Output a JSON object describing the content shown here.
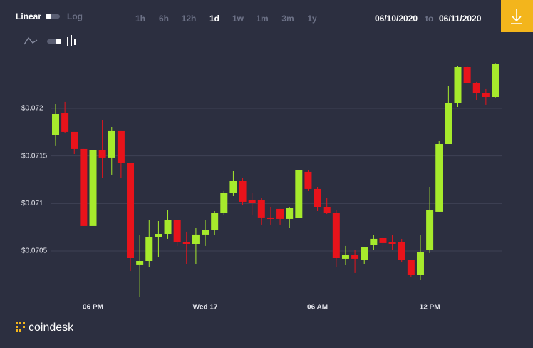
{
  "toolbar": {
    "scale_options": [
      "Linear",
      "Log"
    ],
    "ranges": [
      "1h",
      "6h",
      "12h",
      "1d",
      "1w",
      "1m",
      "3m",
      "1y"
    ],
    "active_range": 3,
    "from_date": "06/10/2020",
    "to_word": "to",
    "to_date": "06/11/2020"
  },
  "brand": "coindesk",
  "chart_data": {
    "type": "candlestick",
    "categories": [
      null,
      null,
      null,
      null,
      "06 PM",
      null,
      null,
      null,
      null,
      null,
      null,
      null,
      null,
      null,
      null,
      null,
      "Wed 17",
      null,
      null,
      null,
      null,
      null,
      null,
      null,
      null,
      null,
      null,
      null,
      "06 AM",
      null,
      null,
      null,
      null,
      null,
      null,
      null,
      null,
      null,
      null,
      null,
      "12 PM",
      null,
      null,
      null,
      null,
      null,
      null,
      null
    ],
    "open": [
      0.071715,
      0.071955,
      0.071753,
      0.071573,
      0.070763,
      0.071565,
      0.071483,
      0.071768,
      0.071423,
      0.070358,
      0.070395,
      0.070643,
      0.07068,
      0.07083,
      0.07059,
      0.070575,
      0.070673,
      0.070725,
      0.070905,
      0.071115,
      0.071235,
      0.07104,
      0.07104,
      0.070853,
      0.070943,
      0.070838,
      0.070845,
      0.071333,
      0.071153,
      0.070965,
      0.070905,
      0.070418,
      0.070455,
      0.070403,
      0.07056,
      0.070635,
      0.07059,
      0.07059,
      0.070403,
      0.070245,
      0.070515,
      0.070913,
      0.071625,
      0.072053,
      0.072435,
      0.072263,
      0.072165,
      0.07212
    ],
    "high": [
      0.072045,
      0.072068,
      0.071753,
      0.071573,
      0.071603,
      0.07188,
      0.071805,
      0.071768,
      0.071423,
      0.070665,
      0.07083,
      0.070815,
      0.07093,
      0.07083,
      0.070703,
      0.07074,
      0.07083,
      0.07092,
      0.07113,
      0.07134,
      0.071265,
      0.071115,
      0.071055,
      0.070965,
      0.070943,
      0.070965,
      0.071355,
      0.071355,
      0.071175,
      0.071055,
      0.07093,
      0.070553,
      0.070515,
      0.070545,
      0.070665,
      0.07065,
      0.070665,
      0.070628,
      0.070403,
      0.070665,
      0.071175,
      0.071655,
      0.07224,
      0.07245,
      0.07245,
      0.072278,
      0.072203,
      0.07248
    ],
    "low": [
      0.071603,
      0.071738,
      0.07152,
      0.070763,
      0.070763,
      0.071265,
      0.071303,
      0.071265,
      0.07029,
      0.07002,
      0.070328,
      0.07044,
      0.070628,
      0.070553,
      0.070365,
      0.070365,
      0.070553,
      0.070665,
      0.070875,
      0.071078,
      0.07098,
      0.070875,
      0.070778,
      0.070778,
      0.070778,
      0.07074,
      0.070845,
      0.07113,
      0.07092,
      0.07089,
      0.070328,
      0.07035,
      0.070268,
      0.070365,
      0.070515,
      0.0705,
      0.070515,
      0.07038,
      0.07023,
      0.0702,
      0.070478,
      0.070913,
      0.071625,
      0.072015,
      0.072263,
      0.07209,
      0.072038,
      0.072105
    ],
    "close": [
      0.07194,
      0.071753,
      0.071573,
      0.070763,
      0.071565,
      0.071483,
      0.071768,
      0.071423,
      0.070425,
      0.070395,
      0.070643,
      0.07068,
      0.07083,
      0.07059,
      0.070575,
      0.070673,
      0.070725,
      0.070905,
      0.071115,
      0.071235,
      0.071018,
      0.07101,
      0.070853,
      0.070838,
      0.070838,
      0.07095,
      0.071355,
      0.071153,
      0.070965,
      0.070905,
      0.070425,
      0.070455,
      0.070418,
      0.070545,
      0.070628,
      0.070583,
      0.070575,
      0.070403,
      0.070245,
      0.070485,
      0.07093,
      0.071625,
      0.072053,
      0.072435,
      0.072263,
      0.072165,
      0.07212,
      0.072465
    ],
    "up_color": "#a6ea2c",
    "down_color": "#e8131b",
    "ylim": [
      0.07,
      0.0725
    ],
    "yticks": [
      {
        "value": 0.0705,
        "label": "$0.0705"
      },
      {
        "value": 0.071,
        "label": "$0.071"
      },
      {
        "value": 0.0715,
        "label": "$0.0715"
      },
      {
        "value": 0.072,
        "label": "$0.072"
      }
    ],
    "grid": true
  }
}
